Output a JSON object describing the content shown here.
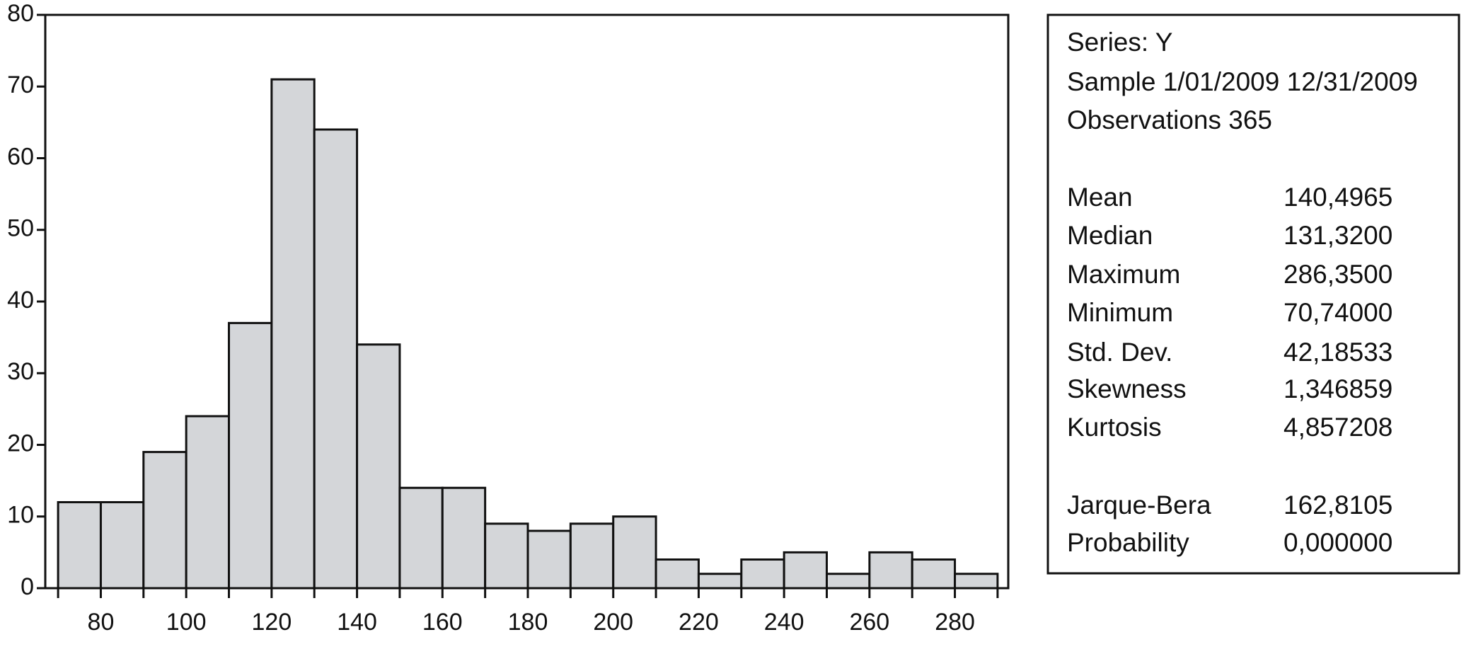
{
  "chart_data": {
    "type": "histogram",
    "bins": [
      70,
      80,
      90,
      100,
      110,
      120,
      130,
      140,
      150,
      160,
      170,
      180,
      190,
      200,
      210,
      220,
      230,
      240,
      250,
      260,
      270,
      280,
      290
    ],
    "values": [
      12,
      12,
      19,
      24,
      37,
      71,
      64,
      34,
      14,
      14,
      9,
      8,
      9,
      10,
      4,
      2,
      4,
      5,
      2,
      5,
      4,
      2
    ],
    "color": "#d4d6d9",
    "xlim": [
      67,
      292.5
    ],
    "xticks": [
      80,
      100,
      120,
      140,
      160,
      180,
      200,
      220,
      240,
      260,
      280
    ],
    "xticks_minor": [
      70,
      90,
      110,
      130,
      150,
      170,
      190,
      210,
      230,
      250,
      270,
      290
    ],
    "ylim": [
      0,
      80
    ],
    "yticks": [
      0,
      10,
      20,
      30,
      40,
      50,
      60,
      70,
      80
    ]
  },
  "stats": {
    "header": [
      "Series: Y",
      "Sample 1/01/2009 12/31/2009",
      "Observations 365"
    ],
    "rows": [
      [
        "Mean",
        "140,4965"
      ],
      [
        "Median",
        "131,3200"
      ],
      [
        "Maximum",
        "286,3500"
      ],
      [
        "Minimum",
        "70,74000"
      ],
      [
        "Std. Dev.",
        "42,18533"
      ],
      [
        "Skewness",
        "1,346859"
      ],
      [
        "Kurtosis",
        "4,857208"
      ],
      [
        "Jarque-Bera",
        "162,8105"
      ],
      [
        "Probability",
        "0,000000"
      ]
    ]
  }
}
